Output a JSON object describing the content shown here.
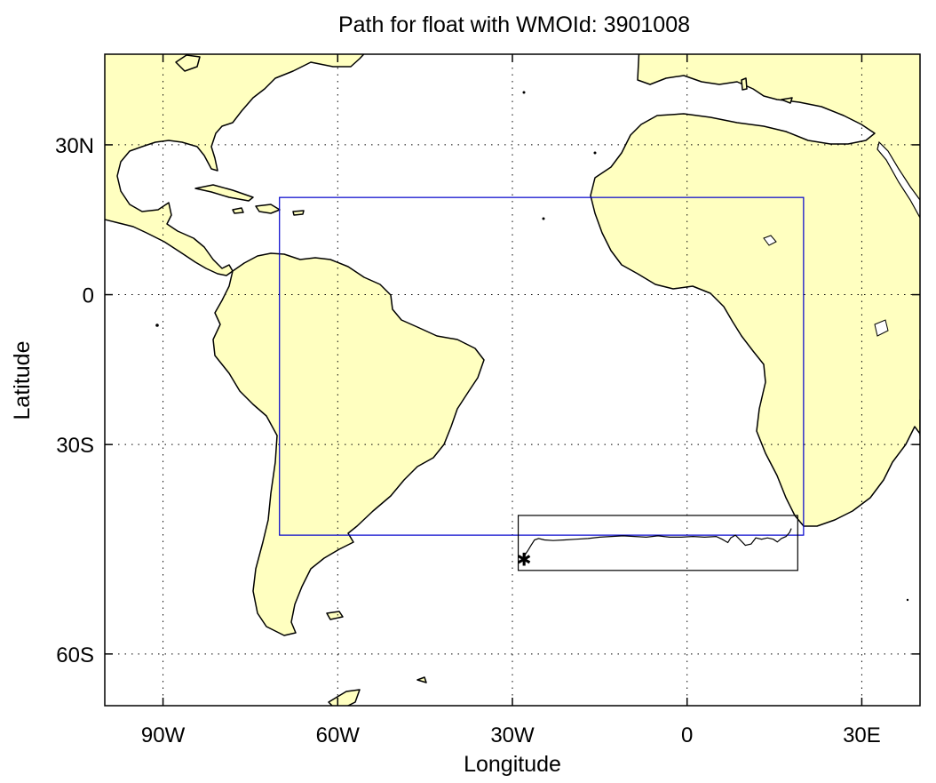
{
  "title": "Path for float with WMOId: 3901008",
  "xlabel": "Longitude",
  "ylabel": "Latitude",
  "colors": {
    "land": "#ffffc0",
    "coast": "#000000",
    "region_box": "#0000cc",
    "path_box": "#000000",
    "path": "#000000",
    "background": "#ffffff"
  },
  "chart_data": {
    "type": "map",
    "projection": "mercator",
    "title": "Path for float with WMOId: 3901008",
    "xlabel": "Longitude",
    "ylabel": "Latitude",
    "lon_range": [
      -100,
      40
    ],
    "lat_range": [
      -65,
      45
    ],
    "grid": true,
    "x_ticks": [
      {
        "value": -90,
        "label": "90W"
      },
      {
        "value": -60,
        "label": "60W"
      },
      {
        "value": -30,
        "label": "30W"
      },
      {
        "value": 0,
        "label": "0"
      },
      {
        "value": 30,
        "label": "30E"
      }
    ],
    "y_ticks": [
      {
        "value": 30,
        "label": "30N"
      },
      {
        "value": 0,
        "label": "0"
      },
      {
        "value": -30,
        "label": "30S"
      },
      {
        "value": -60,
        "label": "60S"
      }
    ],
    "region_box": {
      "lon": [
        -70,
        20
      ],
      "lat": [
        -45,
        20
      ]
    },
    "path_box": {
      "lon": [
        -29,
        19
      ],
      "lat": [
        -50,
        -42
      ]
    },
    "float_start": {
      "lon": -28,
      "lat": -48.5
    },
    "float_path": [
      [
        -28.0,
        -48.5
      ],
      [
        -27.8,
        -47.8
      ],
      [
        -27.3,
        -47.2
      ],
      [
        -26.8,
        -46.5
      ],
      [
        -26.2,
        -45.7
      ],
      [
        -25.5,
        -45.5
      ],
      [
        -24.5,
        -45.7
      ],
      [
        -23.0,
        -45.8
      ],
      [
        -21.0,
        -45.7
      ],
      [
        -19.0,
        -45.6
      ],
      [
        -17.0,
        -45.5
      ],
      [
        -15.0,
        -45.3
      ],
      [
        -13.0,
        -45.2
      ],
      [
        -11.0,
        -45.1
      ],
      [
        -9.0,
        -45.2
      ],
      [
        -7.0,
        -45.3
      ],
      [
        -5.0,
        -45.1
      ],
      [
        -3.0,
        -45.3
      ],
      [
        -1.0,
        -45.3
      ],
      [
        1.0,
        -45.2
      ],
      [
        3.0,
        -45.3
      ],
      [
        5.0,
        -45.2
      ],
      [
        6.0,
        -45.6
      ],
      [
        7.0,
        -46.1
      ],
      [
        7.5,
        -45.4
      ],
      [
        8.3,
        -45.0
      ],
      [
        9.0,
        -45.6
      ],
      [
        10.0,
        -46.5
      ],
      [
        11.0,
        -46.3
      ],
      [
        11.8,
        -45.4
      ],
      [
        12.8,
        -45.6
      ],
      [
        13.8,
        -45.4
      ],
      [
        14.8,
        -45.6
      ],
      [
        15.5,
        -46.0
      ],
      [
        16.2,
        -45.5
      ],
      [
        17.0,
        -45.2
      ],
      [
        17.6,
        -44.6
      ],
      [
        17.9,
        -44.0
      ]
    ]
  }
}
